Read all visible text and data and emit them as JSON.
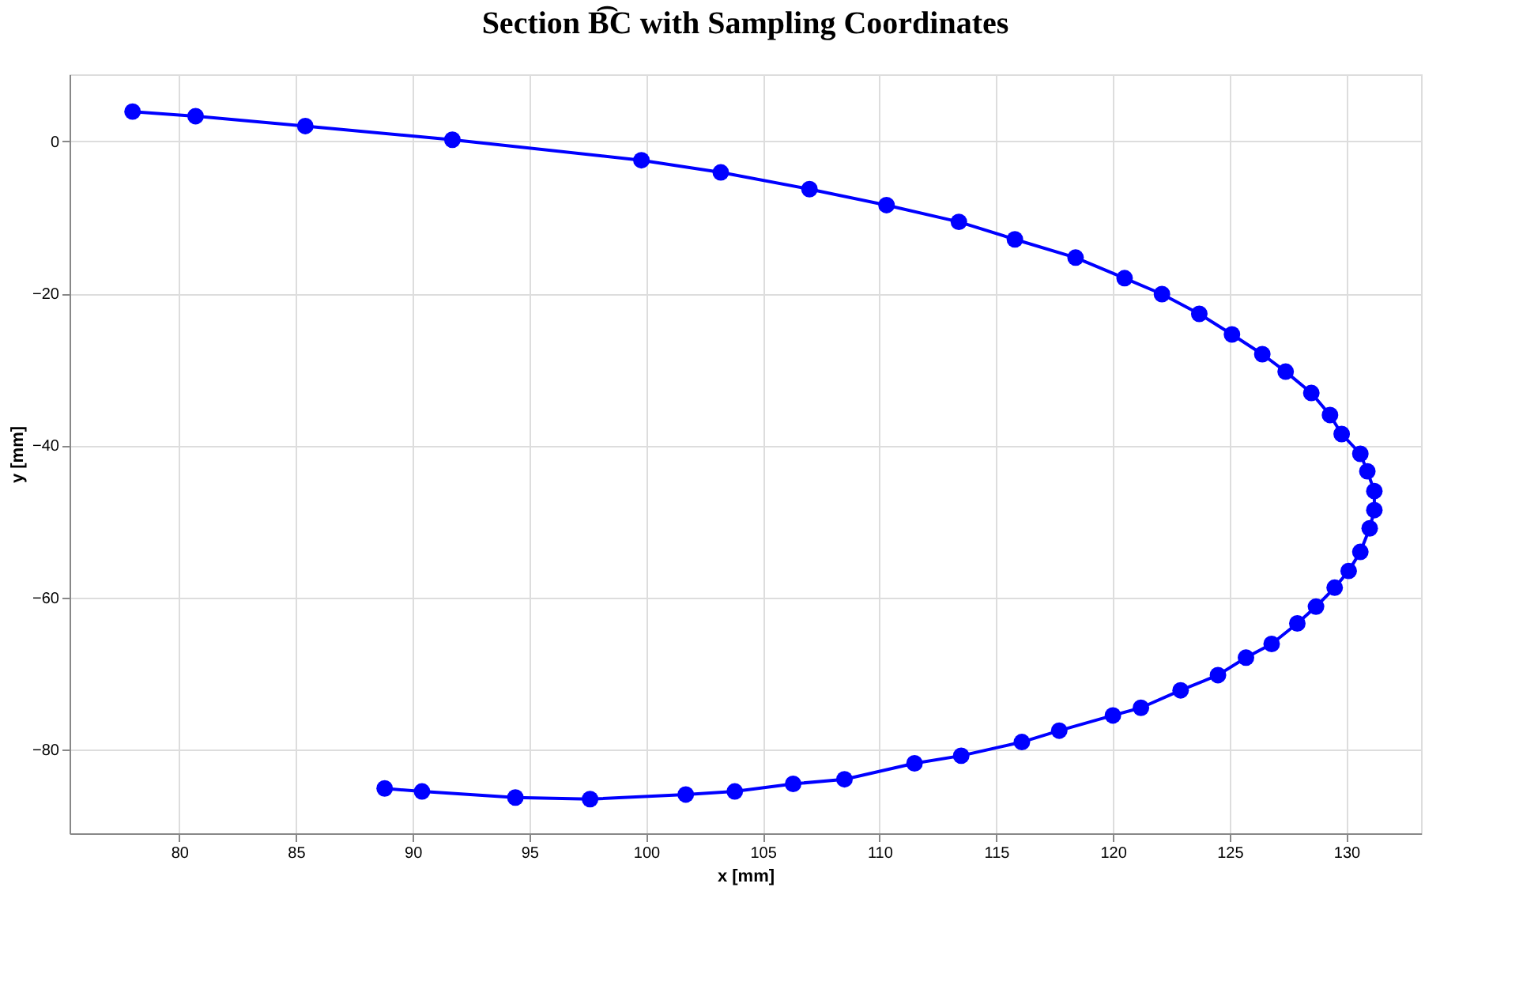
{
  "chart_data": {
    "type": "line",
    "title": "Section B͡C with Sampling Coordinates",
    "xlabel": "x [mm]",
    "ylabel": "y [mm]",
    "x": [
      78.0,
      80.7,
      85.4,
      91.7,
      99.8,
      103.2,
      107.0,
      110.3,
      113.4,
      115.8,
      118.4,
      120.5,
      122.1,
      123.7,
      125.1,
      126.4,
      127.4,
      128.5,
      129.3,
      129.8,
      130.6,
      130.9,
      131.2,
      131.2,
      131.0,
      130.6,
      130.1,
      129.5,
      128.7,
      127.9,
      126.8,
      125.7,
      124.5,
      122.9,
      121.2,
      120.0,
      117.7,
      116.1,
      113.5,
      111.5,
      108.5,
      106.3,
      103.8,
      101.7,
      97.6,
      94.4,
      90.4,
      88.8
    ],
    "series": [
      {
        "color": "#0000ff",
        "values": [
          3.9,
          3.3,
          2.0,
          0.2,
          -2.5,
          -4.1,
          -6.3,
          -8.4,
          -10.6,
          -12.9,
          -15.3,
          -18.0,
          -20.1,
          -22.7,
          -25.4,
          -28.0,
          -30.3,
          -33.1,
          -36.0,
          -38.5,
          -41.1,
          -43.4,
          -46.0,
          -48.5,
          -50.9,
          -54.0,
          -56.5,
          -58.7,
          -61.2,
          -63.4,
          -66.1,
          -67.9,
          -70.2,
          -72.2,
          -74.5,
          -75.5,
          -77.5,
          -79.0,
          -80.8,
          -81.8,
          -83.9,
          -84.5,
          -85.5,
          -85.9,
          -86.5,
          -86.3,
          -85.5,
          -85.1
        ]
      }
    ],
    "xlim": [
      75.3,
      133.2
    ],
    "ylim": [
      -91.0,
      8.8
    ],
    "xticks": [
      80,
      85,
      90,
      95,
      100,
      105,
      110,
      115,
      120,
      125,
      130
    ],
    "yticks": [
      -80,
      -60,
      -40,
      -20,
      0
    ],
    "grid": true,
    "marker": "circle",
    "line_style": "solid"
  }
}
